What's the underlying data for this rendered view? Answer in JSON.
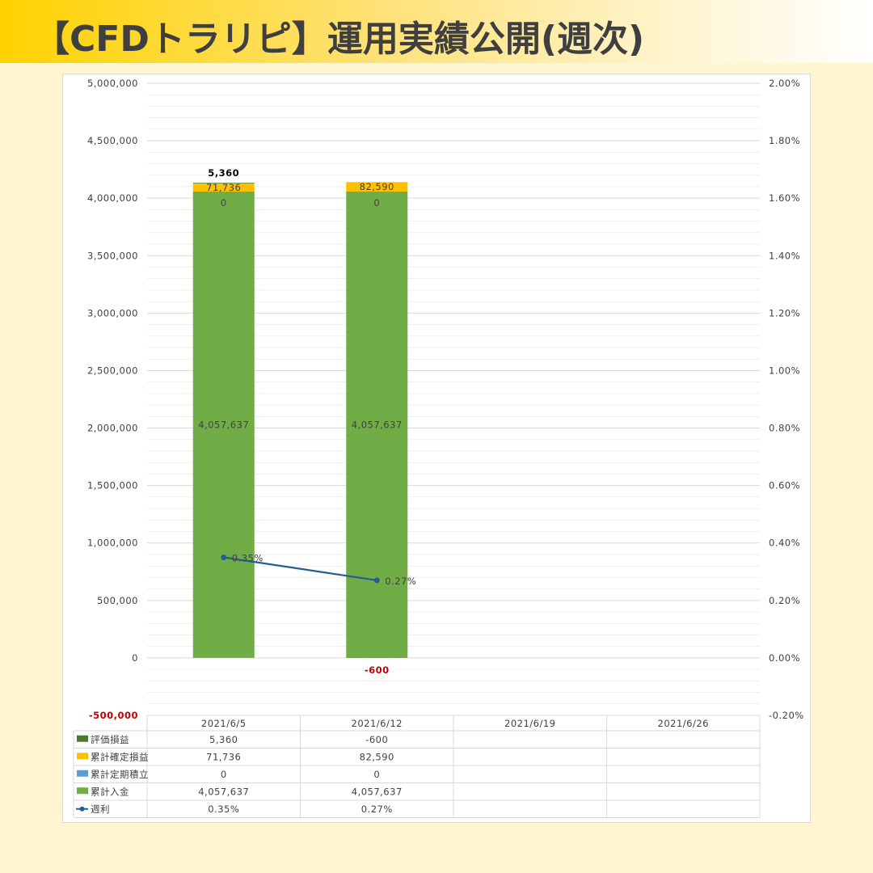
{
  "title": "【CFDトラリピ】運用実績公開(週次)",
  "colors": {
    "valuation": "#4a7a2e",
    "realized": "#ffc000",
    "savings": "#5b9bd5",
    "deposit": "#70ad47",
    "weekly": "#255e91",
    "negative": "#c00000",
    "grid": "#d9d9d9"
  },
  "chart_data": {
    "type": "bar",
    "stacked": true,
    "categories": [
      "2021/6/5",
      "2021/6/12",
      "2021/6/19",
      "2021/6/26"
    ],
    "y_left": {
      "min": -500000,
      "max": 5000000,
      "major_step": 500000,
      "tick_labels": [
        "-500,000",
        "0",
        "500,000",
        "1,000,000",
        "1,500,000",
        "2,000,000",
        "2,500,000",
        "3,000,000",
        "3,500,000",
        "4,000,000",
        "4,500,000",
        "5,000,000"
      ]
    },
    "y_right": {
      "min": -0.2,
      "max": 2.0,
      "unit": "%",
      "tick_labels": [
        "-0.20%",
        "0.00%",
        "0.20%",
        "0.40%",
        "0.60%",
        "0.80%",
        "1.00%",
        "1.20%",
        "1.40%",
        "1.60%",
        "1.80%",
        "2.00%"
      ]
    },
    "grid": true,
    "legend": "data-table-left",
    "series": [
      {
        "name": "評価損益",
        "kind": "bar",
        "color_key": "valuation",
        "values": [
          5360,
          -600,
          null,
          null
        ],
        "labels": [
          "5,360",
          "-600",
          "",
          ""
        ]
      },
      {
        "name": "累計確定損益",
        "kind": "bar",
        "color_key": "realized",
        "values": [
          71736,
          82590,
          null,
          null
        ],
        "labels": [
          "71,736",
          "82,590",
          "",
          ""
        ]
      },
      {
        "name": "累計定期積立",
        "kind": "bar",
        "color_key": "savings",
        "values": [
          0,
          0,
          null,
          null
        ],
        "labels": [
          "0",
          "0",
          "",
          ""
        ]
      },
      {
        "name": "累計入金",
        "kind": "bar",
        "color_key": "deposit",
        "values": [
          4057637,
          4057637,
          null,
          null
        ],
        "labels": [
          "4,057,637",
          "4,057,637",
          "",
          ""
        ]
      },
      {
        "name": "週利",
        "kind": "line",
        "axis": "right",
        "color_key": "weekly",
        "values": [
          0.35,
          0.27,
          null,
          null
        ],
        "labels": [
          "0.35%",
          "0.27%",
          "",
          ""
        ]
      }
    ]
  }
}
